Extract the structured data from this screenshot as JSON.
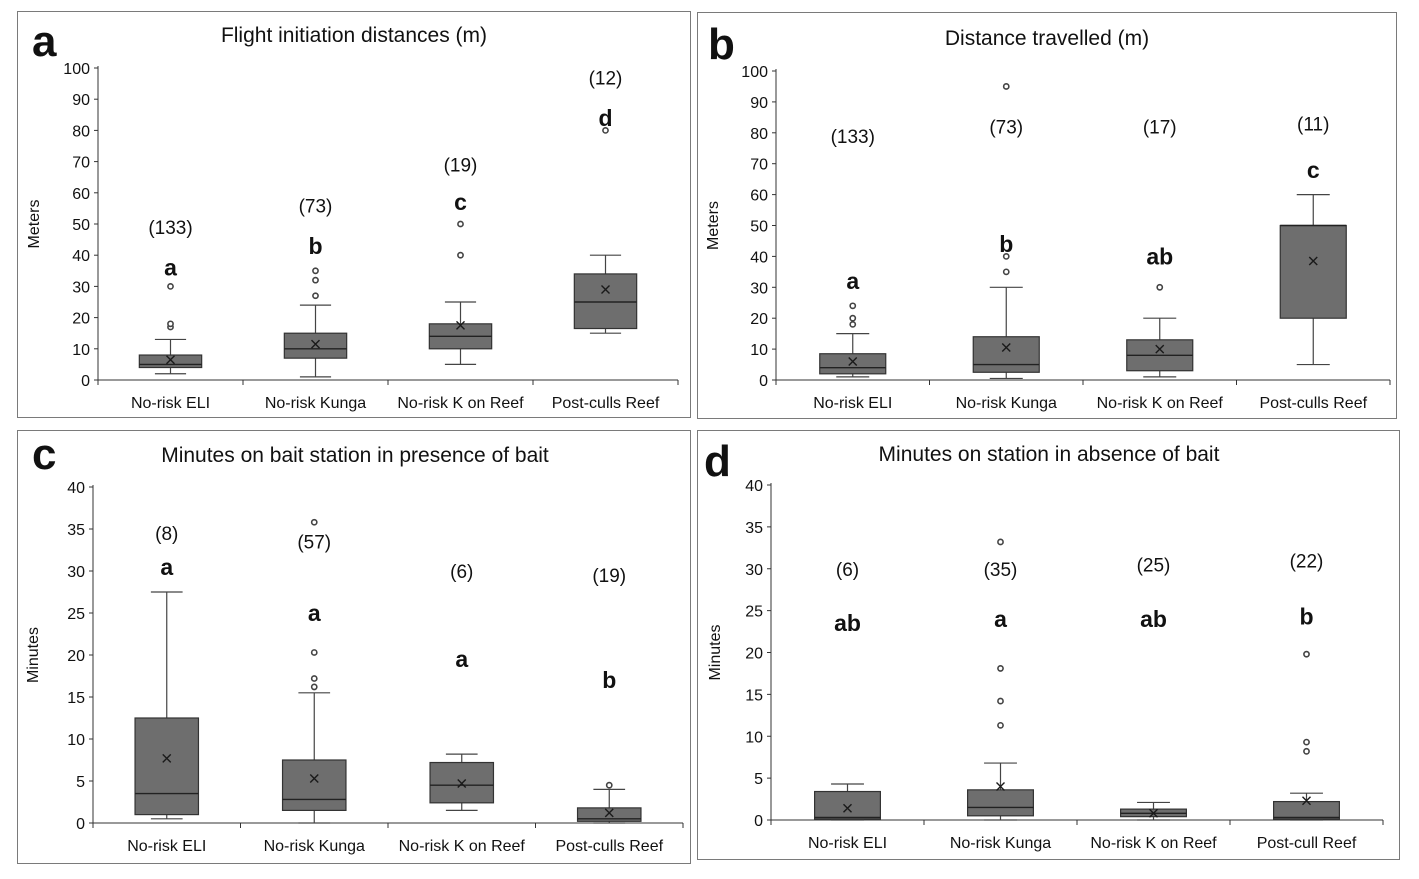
{
  "colors": {
    "box_fill": "#6e6e6e",
    "box_stroke": "#333333",
    "whisker": "#444444",
    "panel_border": "#7a7a7a",
    "axis": "#333333"
  },
  "chart_data": [
    {
      "panel_label": "a",
      "type": "box",
      "title": "Flight initiation distances (m)",
      "ylabel": "Meters",
      "ylim": [
        0,
        100
      ],
      "yticks": [
        "0",
        "10",
        "20",
        "30",
        "40",
        "50",
        "60",
        "70",
        "80",
        "90",
        "100"
      ],
      "categories": [
        "No-risk ELI",
        "No-risk Kunga",
        "No-risk K on Reef",
        "Post-culls Reef"
      ],
      "boxes": [
        {
          "min": 2,
          "q1": 4,
          "median": 5,
          "q3": 8,
          "max": 13,
          "mean": 6.5,
          "outliers": [
            17,
            18,
            30
          ]
        },
        {
          "min": 1,
          "q1": 7,
          "median": 10,
          "q3": 15,
          "max": 24,
          "mean": 11.5,
          "outliers": [
            27,
            32,
            35
          ]
        },
        {
          "min": 5,
          "q1": 10,
          "median": 14,
          "q3": 18,
          "max": 25,
          "mean": 17.5,
          "outliers": [
            40,
            50
          ]
        },
        {
          "min": 15,
          "q1": 16.5,
          "median": 25,
          "q3": 34,
          "max": 40,
          "mean": 29,
          "outliers": [
            80
          ]
        }
      ],
      "counts": [
        "(133)",
        "(73)",
        "(19)",
        "(12)"
      ],
      "count_y": [
        49,
        56,
        69,
        97
      ],
      "letters": [
        "a",
        "b",
        "c",
        "d"
      ],
      "letter_y": [
        36,
        43,
        57,
        84
      ]
    },
    {
      "panel_label": "b",
      "type": "box",
      "title": "Distance travelled (m)",
      "ylabel": "Meters",
      "ylim": [
        0,
        100
      ],
      "yticks": [
        "0",
        "10",
        "20",
        "30",
        "40",
        "50",
        "60",
        "70",
        "80",
        "90",
        "100"
      ],
      "categories": [
        "No-risk ELI",
        "No-risk Kunga",
        "No-risk K on Reef",
        "Post-culls Reef"
      ],
      "boxes": [
        {
          "min": 1,
          "q1": 2,
          "median": 4,
          "q3": 8.5,
          "max": 15,
          "mean": 6,
          "outliers": [
            18,
            20,
            24
          ]
        },
        {
          "min": 0.5,
          "q1": 2.5,
          "median": 5,
          "q3": 14,
          "max": 30,
          "mean": 10.5,
          "outliers": [
            35,
            40,
            95
          ]
        },
        {
          "min": 1,
          "q1": 3,
          "median": 8,
          "q3": 13,
          "max": 20,
          "mean": 10,
          "outliers": [
            30
          ]
        },
        {
          "min": 5,
          "q1": 20,
          "median": 50,
          "q3": 50,
          "max": 60,
          "mean": 38.5,
          "outliers": []
        }
      ],
      "counts": [
        "(133)",
        "(73)",
        "(17)",
        "(11)"
      ],
      "count_y": [
        79,
        82,
        82,
        83
      ],
      "letters": [
        "a",
        "b",
        "ab",
        "c"
      ],
      "letter_y": [
        32,
        44,
        40,
        68
      ]
    },
    {
      "panel_label": "c",
      "type": "box",
      "title": "Minutes on bait station in presence of bait",
      "ylabel": "Minutes",
      "ylim": [
        0,
        40
      ],
      "yticks": [
        "0",
        "5",
        "10",
        "15",
        "20",
        "25",
        "30",
        "35",
        "40"
      ],
      "categories": [
        "No-risk ELI",
        "No-risk Kunga",
        "No-risk K on Reef",
        "Post-culls Reef"
      ],
      "boxes": [
        {
          "min": 0.5,
          "q1": 1,
          "median": 3.5,
          "q3": 12.5,
          "max": 27.5,
          "mean": 7.7,
          "outliers": []
        },
        {
          "min": 0,
          "q1": 1.5,
          "median": 2.8,
          "q3": 7.5,
          "max": 15.5,
          "mean": 5.3,
          "outliers": [
            16.2,
            17.2,
            20.3,
            35.8
          ]
        },
        {
          "min": 1.5,
          "q1": 2.4,
          "median": 4.5,
          "q3": 7.2,
          "max": 8.2,
          "mean": 4.7,
          "outliers": []
        },
        {
          "min": 0,
          "q1": 0.2,
          "median": 0.5,
          "q3": 1.8,
          "max": 4,
          "mean": 1.2,
          "outliers": [
            4.5
          ]
        }
      ],
      "counts": [
        "(8)",
        "(57)",
        "(6)",
        "(19)"
      ],
      "count_y": [
        34.5,
        33.5,
        30,
        29.5
      ],
      "letters": [
        "a",
        "a",
        "a",
        "b"
      ],
      "letter_y": [
        30.5,
        25,
        19.5,
        17
      ]
    },
    {
      "panel_label": "d",
      "type": "box",
      "title": "Minutes on station in absence of bait",
      "ylabel": "Minutes",
      "ylim": [
        0,
        40
      ],
      "yticks": [
        "0",
        "5",
        "10",
        "15",
        "20",
        "25",
        "30",
        "35",
        "40"
      ],
      "categories": [
        "No-risk ELI",
        "No-risk Kunga",
        "No-risk K on Reef",
        "Post-cull Reef"
      ],
      "boxes": [
        {
          "min": 0,
          "q1": 0.1,
          "median": 0.3,
          "q3": 3.4,
          "max": 4.3,
          "mean": 1.4,
          "outliers": []
        },
        {
          "min": 0,
          "q1": 0.5,
          "median": 1.5,
          "q3": 3.6,
          "max": 6.8,
          "mean": 4,
          "outliers": [
            11.3,
            14.2,
            18.1,
            33.2
          ]
        },
        {
          "min": 0,
          "q1": 0.4,
          "median": 0.8,
          "q3": 1.3,
          "max": 2.1,
          "mean": 0.8,
          "outliers": []
        },
        {
          "min": 0,
          "q1": 0.1,
          "median": 0.3,
          "q3": 2.2,
          "max": 3.2,
          "mean": 2.3,
          "outliers": [
            8.2,
            9.3,
            19.8
          ]
        }
      ],
      "counts": [
        "(6)",
        "(35)",
        "(25)",
        "(22)"
      ],
      "count_y": [
        30,
        30,
        30.5,
        31
      ],
      "letters": [
        "ab",
        "a",
        "ab",
        "b"
      ],
      "letter_y": [
        23.5,
        24,
        24,
        24.3
      ]
    }
  ]
}
